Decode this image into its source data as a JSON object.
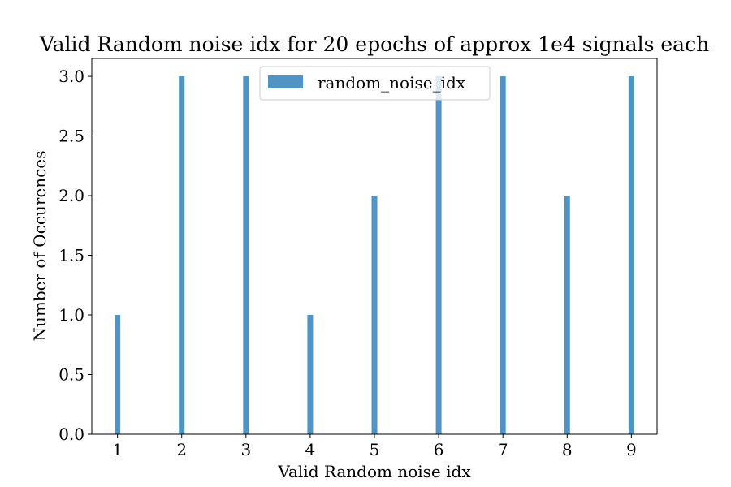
{
  "chart_data": {
    "type": "bar",
    "title": "Valid Random noise idx for 20 epochs of approx 1e4 signals each",
    "xlabel": "Valid Random noise idx",
    "ylabel": "Number of Occurences",
    "x": [
      1,
      2,
      3,
      4,
      5,
      6,
      7,
      8,
      9
    ],
    "values": [
      1,
      3,
      3,
      1,
      2,
      3,
      3,
      2,
      3
    ],
    "series": [
      {
        "name": "random_noise_idx",
        "values": [
          1,
          3,
          3,
          1,
          2,
          3,
          3,
          2,
          3
        ]
      }
    ],
    "xlim": [
      0.6,
      9.4
    ],
    "ylim": [
      0,
      3.15
    ],
    "xticks": [
      "1",
      "2",
      "3",
      "4",
      "5",
      "6",
      "7",
      "8",
      "9"
    ],
    "yticks": [
      "0.0",
      "0.5",
      "1.0",
      "1.5",
      "2.0",
      "2.5",
      "3.0"
    ],
    "legend_placement": "top-center",
    "grid": false,
    "colors": {
      "bar": "#4f94c4",
      "axes": "#000000",
      "legend_border": "#cccccc"
    }
  }
}
